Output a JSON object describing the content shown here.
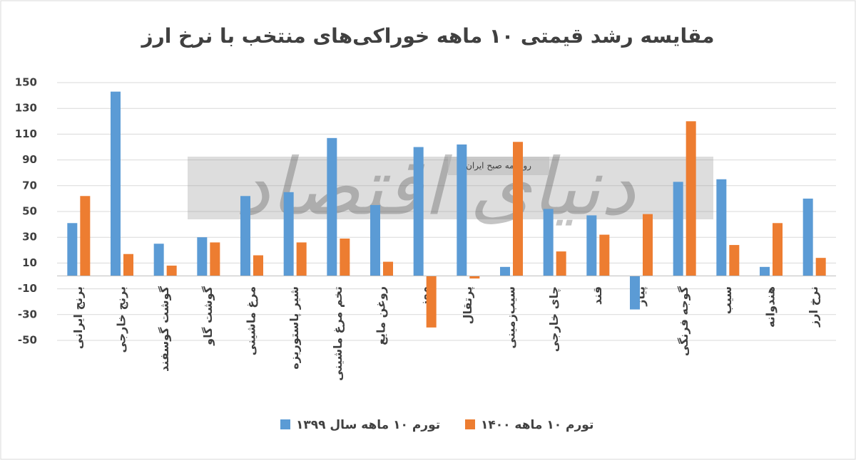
{
  "chart_data": {
    "type": "bar",
    "title": "مقایسه رشد قیمتی ۱۰ ماهه خوراکی‌های منتخب با نرخ ارز",
    "watermark": "دنیای اقتصاد",
    "watermark_subtitle": "روزنامه صبح ایران",
    "categories": [
      "برنج ایرانی",
      "برنج خارجی",
      "گوشت گوسفند",
      "گوشت گاو",
      "مرغ ماشینی",
      "شیر پاستوریزه",
      "تخم مرغ ماشینی",
      "روغن مایع",
      "موز",
      "پرتقال",
      "سیب‌زمینی",
      "چای خارجی",
      "قند",
      "پیاز",
      "گوجه فرنگی",
      "سیب",
      "هندوانه",
      "نرخ ارز"
    ],
    "series": [
      {
        "name": "تورم ۱۰ ماهه سال ۱۳۹۹",
        "color": "#5b9bd5",
        "values": [
          41,
          143,
          25,
          30,
          62,
          65,
          107,
          55,
          100,
          102,
          7,
          52,
          47,
          -26,
          73,
          75,
          7,
          60
        ]
      },
      {
        "name": "تورم ۱۰ ماهه ۱۴۰۰",
        "color": "#ed7d31",
        "values": [
          62,
          17,
          8,
          26,
          16,
          26,
          29,
          11,
          -40,
          -2,
          104,
          19,
          32,
          48,
          120,
          24,
          41,
          14
        ]
      }
    ],
    "ylim": [
      -50,
      150
    ],
    "yticks": [
      -50,
      -30,
      -10,
      10,
      30,
      50,
      70,
      90,
      110,
      130,
      150
    ],
    "grid": true
  }
}
